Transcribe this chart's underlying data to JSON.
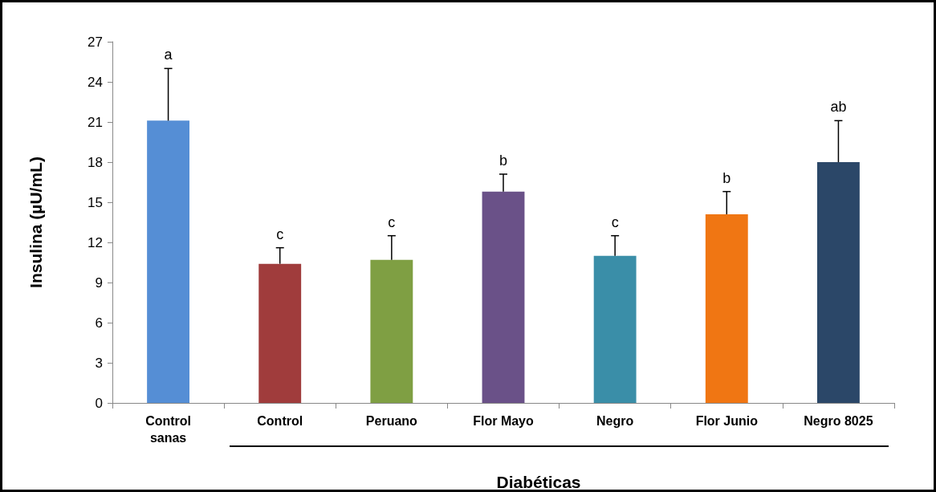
{
  "chart_data": {
    "type": "bar",
    "ylabel": "Insulina (µU/mL)",
    "xlabel": "Diabéticas",
    "categories": [
      "Control\nsanas",
      "Control",
      "Peruano",
      "Flor Mayo",
      "Negro",
      "Flor Junio",
      "Negro 8025"
    ],
    "values": [
      21.1,
      10.4,
      10.7,
      15.8,
      11.0,
      14.1,
      18.0
    ],
    "errors": [
      3.9,
      1.2,
      1.8,
      1.3,
      1.5,
      1.7,
      3.1
    ],
    "colors": [
      "#558ed5",
      "#a03c3c",
      "#7f9f43",
      "#6a5188",
      "#3a8ea8",
      "#f07613",
      "#2b4768"
    ],
    "ylim": [
      0,
      27
    ],
    "yticks": [
      0,
      3,
      6,
      9,
      12,
      15,
      18,
      21,
      24,
      27
    ],
    "grid": false,
    "annotations": [
      {
        "text": "a",
        "x": "Control\nsanas",
        "y": 25.0
      },
      {
        "text": "c",
        "x": "Control",
        "y": 11.6
      },
      {
        "text": "c",
        "x": "Peruano",
        "y": 12.5
      },
      {
        "text": "b",
        "x": "Flor Mayo",
        "y": 17.1
      },
      {
        "text": "c",
        "x": "Negro",
        "y": 12.5
      },
      {
        "text": "b",
        "x": "Flor Junio",
        "y": 15.8
      },
      {
        "text": "ab",
        "x": "Negro 8025",
        "y": 21.1
      }
    ]
  }
}
